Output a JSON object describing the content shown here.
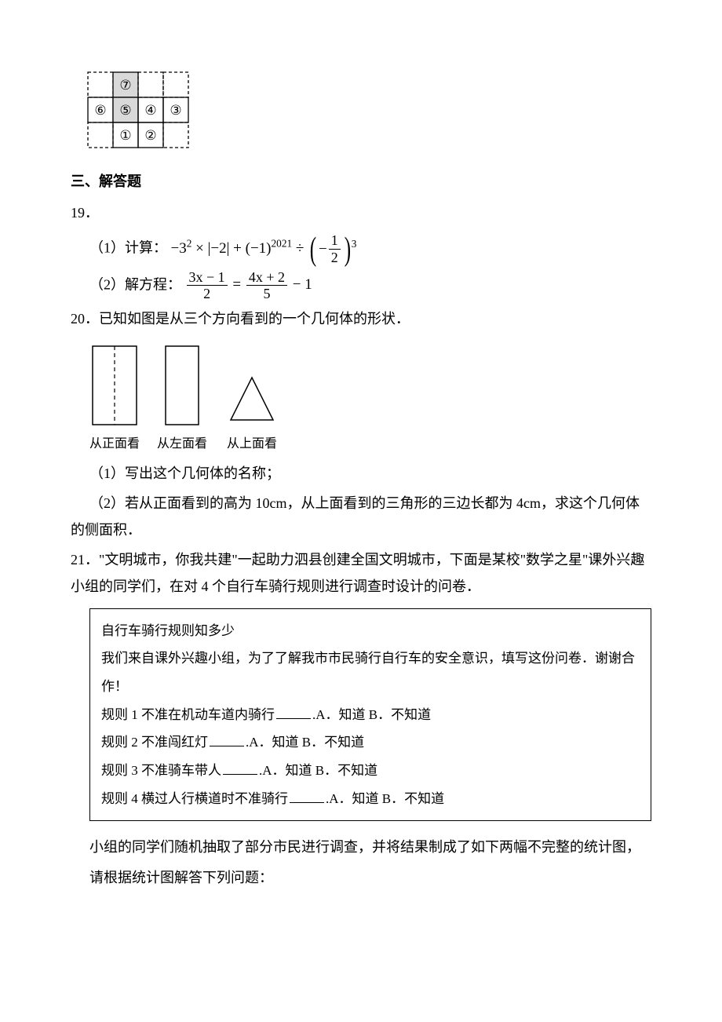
{
  "grid": {
    "cols": 4,
    "rows": 3,
    "cell": 32,
    "dashed_cells": [
      [
        0,
        0
      ],
      [
        0,
        2
      ],
      [
        0,
        3
      ],
      [
        2,
        0
      ],
      [
        2,
        3
      ]
    ],
    "shaded_cells": [
      [
        0,
        1
      ],
      [
        1,
        1
      ]
    ],
    "shaded_fill": "#d9d9d9",
    "solid_stroke": "#000000",
    "circled_numbers": {
      "(0,1)": "⑦",
      "(1,0)": "⑥",
      "(1,1)": "⑤",
      "(1,2)": "④",
      "(1,3)": "③",
      "(2,1)": "①",
      "(2,2)": "②"
    }
  },
  "section_header": "三、解答题",
  "q19": {
    "number": "19．",
    "part1_label": "（1）计算：",
    "part2_label": "（2）解方程：",
    "expr1": {
      "a": "−3",
      "a_sup": "2",
      "times": "×",
      "abs": "|−2|",
      "plus": "+",
      "neg1": "(−1)",
      "neg1_sup": "2021",
      "div": "÷",
      "inner_num": "1",
      "inner_den": "2",
      "inner_sign": "−",
      "outer_sup": "3"
    },
    "expr2": {
      "l_num": "3x − 1",
      "l_den": "2",
      "eq": "=",
      "r_num": "4x + 2",
      "r_den": "5",
      "tail": "− 1"
    }
  },
  "q20": {
    "number": "20．",
    "stem": "已知如图是从三个方向看到的一个几何体的形状．",
    "views": {
      "front_label": "从正面看",
      "left_label": "从左面看",
      "top_label": "从上面看"
    },
    "part1": "（1）写出这个几何体的名称；",
    "part2": "（2）若从正面看到的高为 10cm，从上面看到的三角形的三边长都为 4cm，求这个几何体的侧面积．"
  },
  "q21": {
    "number": "21．",
    "stem": "\"文明城市，你我共建\"一起助力泗县创建全国文明城市，下面是某校\"数学之星\"课外兴趣小组的同学们，在对 4 个自行车骑行规则进行调查时设计的问卷．",
    "box": {
      "title": "自行车骑行规则知多少",
      "intro": "我们来自课外兴趣小组，为了了解我市市民骑行自行车的安全意识，填写这份问卷．谢谢合作！",
      "option_a": "A．知道",
      "option_b": "B．不知道",
      "rules": [
        "规则 1 不准在机动车道内骑行",
        "规则 2 不准闯红灯",
        "规则 3 不准骑车带人",
        "规则 4 横过人行横道时不准骑行"
      ]
    },
    "tail1": "小组的同学们随机抽取了部分市民进行调查，并将结果制成了如下两幅不完整的统计图，",
    "tail2": "请根据统计图解答下列问题："
  }
}
